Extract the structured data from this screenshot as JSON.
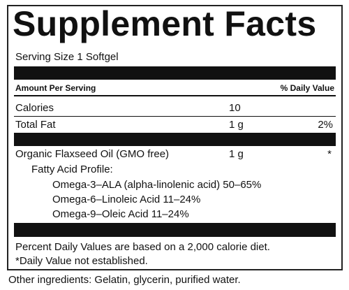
{
  "header": {
    "title": "Supplement Facts",
    "serving_size": "Serving Size 1 Softgel"
  },
  "table": {
    "header": [
      "Amount Per Serving",
      "% Daily Value"
    ],
    "rows": [
      {
        "name": "Calories",
        "amount": "10"
      },
      {
        "name": "Total Fat",
        "amount": "1 g",
        "daily_value": "2%"
      },
      {
        "name": "Organic Flaxseed Oil (GMO free)",
        "amount": "1 g",
        "daily_value": "*"
      }
    ],
    "profile": {
      "title": "Fatty Acid Profile:",
      "items": [
        "Omega-3–ALA (alpha-linolenic acid) 50–65%",
        "Omega-6–Linoleic Acid 11–24%",
        "Omega-9–Oleic Acid 11–24%"
      ]
    }
  },
  "footnotes": [
    "Percent Daily Values are based on a 2,000 calorie diet.",
    "*Daily Value not established."
  ],
  "other_ingredients": "Other ingredients: Gelatin, glycerin, purified water."
}
